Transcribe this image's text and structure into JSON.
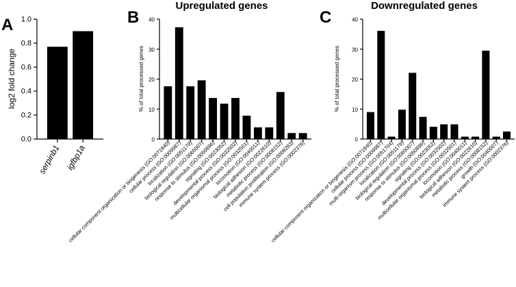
{
  "panels": {
    "A": "A",
    "B": "B",
    "C": "C"
  },
  "chart_data": [
    {
      "type": "bar",
      "title": "",
      "xlabel": "",
      "ylabel": "log2 fold change",
      "ylim": [
        0,
        1.0
      ],
      "yticks": [
        "0.0",
        "0.2",
        "0.4",
        "0.6",
        "0.8",
        "1.0"
      ],
      "categories": [
        "serpinb1",
        "igfbp1a"
      ],
      "values": [
        0.77,
        0.9
      ]
    },
    {
      "type": "bar",
      "title": "Upregulated genes",
      "xlabel": "",
      "ylabel": "% of total processed genes",
      "ylim": [
        0,
        40
      ],
      "yticks": [
        "0",
        "10",
        "20",
        "30",
        "40"
      ],
      "categories": [
        "cellular component organization or biogenesis (GO:0071840)",
        "cellular process (GO:0009987)",
        "localization (GO:0051179)",
        "biological regulation (GO:0065007)",
        "response to stimulus (GO:0050896)",
        "signaling (GO:0023052)",
        "developmental process (GO:0032502)",
        "multicellular organismal process (GO:0032501)",
        "locomotion (GO:0040011)",
        "biological adhesion (GO:0022610)",
        "metabolic process (GO:0008152)",
        "cell population proliferation (GO:0008283)",
        "immune system process (GO:0002376)"
      ],
      "values": [
        17.6,
        37.3,
        17.6,
        19.6,
        13.7,
        11.8,
        13.7,
        7.8,
        3.9,
        3.9,
        15.7,
        2.0,
        2.0
      ]
    },
    {
      "type": "bar",
      "title": "Downregulated genes",
      "xlabel": "",
      "ylabel": "% of total processed genes",
      "ylim": [
        0,
        40
      ],
      "yticks": [
        "0",
        "10",
        "20",
        "30",
        "40"
      ],
      "categories": [
        "cellular component organization or biogenesis (GO:0071840)",
        "cellular process (GO:0009987)",
        "multi-organism process (GO:0051704)",
        "localization (GO:0051179)",
        "biological regulation (GO:0065007)",
        "response to stimulus (GO:0050896)",
        "signaling (GO:0023052)",
        "developmental process (GO:0032502)",
        "multicellular organismal process (GO:0032501)",
        "locomotion (GO:0040011)",
        "biological adhesion (GO:0022610)",
        "metabolic process (GO:0008152)",
        "growth (GO:0040007)",
        "immune system process (GO:0002376)"
      ],
      "values": [
        9.0,
        36.1,
        0.8,
        9.8,
        22.1,
        7.4,
        4.1,
        4.9,
        4.9,
        0.8,
        0.8,
        29.5,
        0.8,
        2.5
      ]
    }
  ]
}
